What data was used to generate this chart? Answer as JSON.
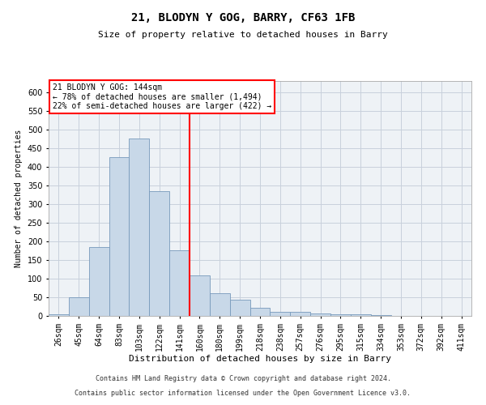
{
  "title1": "21, BLODYN Y GOG, BARRY, CF63 1FB",
  "title2": "Size of property relative to detached houses in Barry",
  "xlabel": "Distribution of detached houses by size in Barry",
  "ylabel": "Number of detached properties",
  "categories": [
    "26sqm",
    "45sqm",
    "64sqm",
    "83sqm",
    "103sqm",
    "122sqm",
    "141sqm",
    "160sqm",
    "180sqm",
    "199sqm",
    "218sqm",
    "238sqm",
    "257sqm",
    "276sqm",
    "295sqm",
    "315sqm",
    "334sqm",
    "353sqm",
    "372sqm",
    "392sqm",
    "411sqm"
  ],
  "values": [
    5,
    50,
    185,
    425,
    475,
    335,
    175,
    108,
    60,
    43,
    22,
    10,
    10,
    7,
    5,
    4,
    2,
    1,
    1,
    1,
    1
  ],
  "bar_color": "#c8d8e8",
  "bar_edge_color": "#7799bb",
  "vline_x_index": 6,
  "vline_color": "red",
  "annotation_title": "21 BLODYN Y GOG: 144sqm",
  "annotation_line1": "← 78% of detached houses are smaller (1,494)",
  "annotation_line2": "22% of semi-detached houses are larger (422) →",
  "annotation_box_color": "white",
  "annotation_box_edge_color": "red",
  "footnote1": "Contains HM Land Registry data © Crown copyright and database right 2024.",
  "footnote2": "Contains public sector information licensed under the Open Government Licence v3.0.",
  "ylim": [
    0,
    630
  ],
  "yticks": [
    0,
    50,
    100,
    150,
    200,
    250,
    300,
    350,
    400,
    450,
    500,
    550,
    600
  ],
  "grid_color": "#c8d0dc",
  "background_color": "#eef2f6",
  "title1_fontsize": 10,
  "title2_fontsize": 8,
  "xlabel_fontsize": 8,
  "ylabel_fontsize": 7,
  "tick_fontsize": 7,
  "ann_fontsize": 7,
  "footnote_fontsize": 6
}
